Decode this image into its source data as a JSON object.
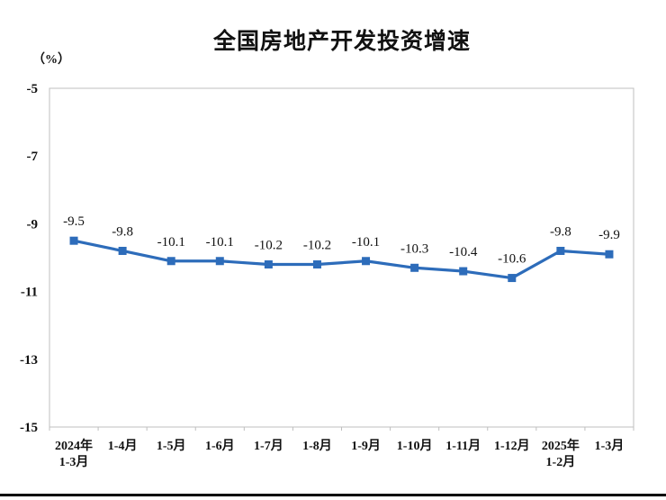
{
  "chart_data": {
    "type": "line",
    "title": "全国房地产开发投资增速",
    "unit_label": "（%）",
    "series_name": "全国房地产开发投资增速",
    "categories": [
      "2024年\n1-3月",
      "1-4月",
      "1-5月",
      "1-6月",
      "1-7月",
      "1-8月",
      "1-9月",
      "1-10月",
      "1-11月",
      "1-12月",
      "2025年\n1-2月",
      "1-3月"
    ],
    "values": [
      -9.5,
      -9.8,
      -10.1,
      -10.1,
      -10.2,
      -10.2,
      -10.1,
      -10.3,
      -10.4,
      -10.6,
      -9.8,
      -9.9
    ],
    "data_labels": [
      "-9.5",
      "-9.8",
      "-10.1",
      "-10.1",
      "-10.2",
      "-10.2",
      "-10.1",
      "-10.3",
      "-10.4",
      "-10.6",
      "-9.8",
      "-9.9"
    ],
    "yticks": [
      -5,
      -7,
      -9,
      -11,
      -13,
      -15
    ],
    "ylim": [
      -15,
      -5
    ],
    "grid": false,
    "legend": "none",
    "marker": "square",
    "colors": {
      "line": "#2d6cba",
      "marker": "#2d6cba",
      "axis_border": "#bfbfbf",
      "text": "#111111",
      "bottom_bar": "#000000"
    }
  }
}
